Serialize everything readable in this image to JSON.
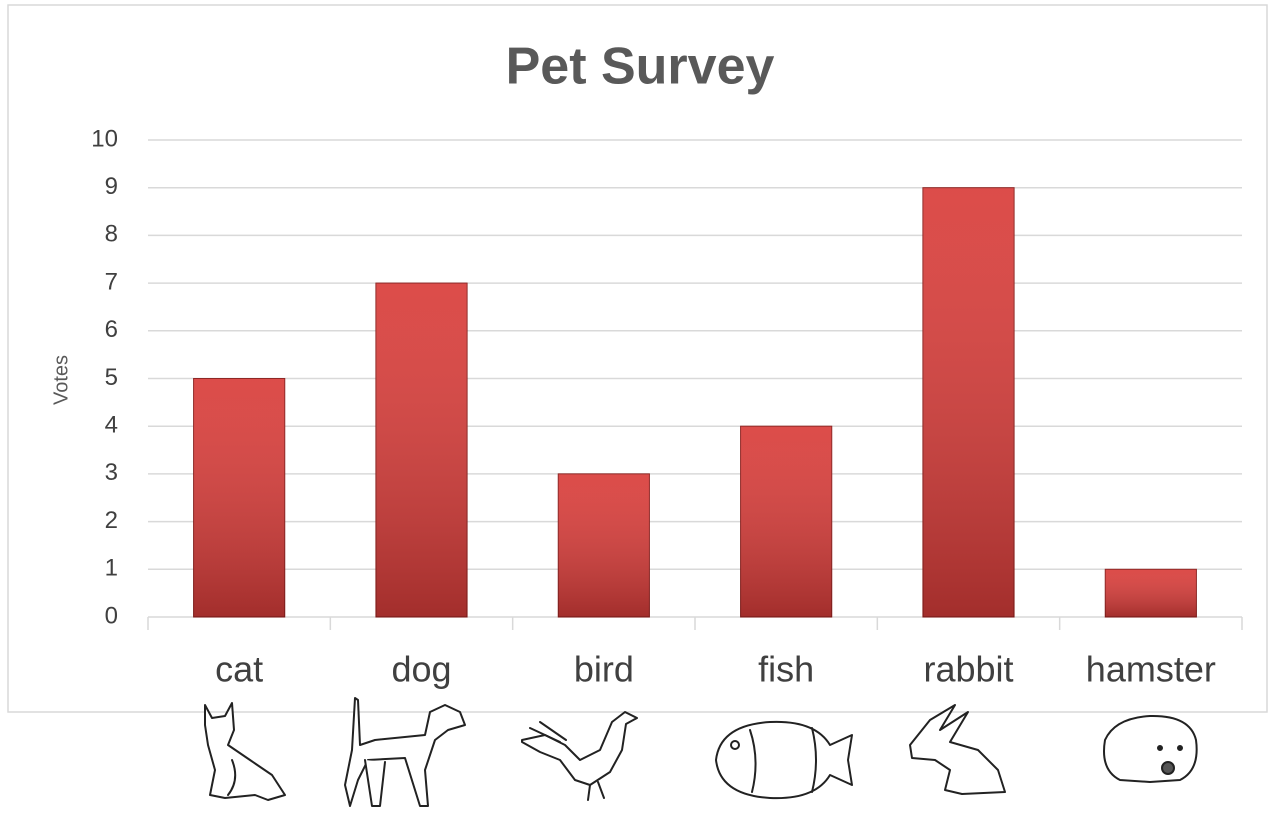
{
  "chart_data": {
    "type": "bar",
    "title": "Pet Survey",
    "y_label": "Votes",
    "categories": [
      "cat",
      "dog",
      "bird",
      "fish",
      "rabbit",
      "hamster"
    ],
    "values": [
      5,
      7,
      3,
      4,
      9,
      1
    ],
    "color": "#d93d3a",
    "ylim": [
      0,
      10
    ],
    "yticks": [
      0,
      1,
      2,
      3,
      4,
      5,
      6,
      7,
      8,
      9,
      10
    ],
    "grid": true
  }
}
